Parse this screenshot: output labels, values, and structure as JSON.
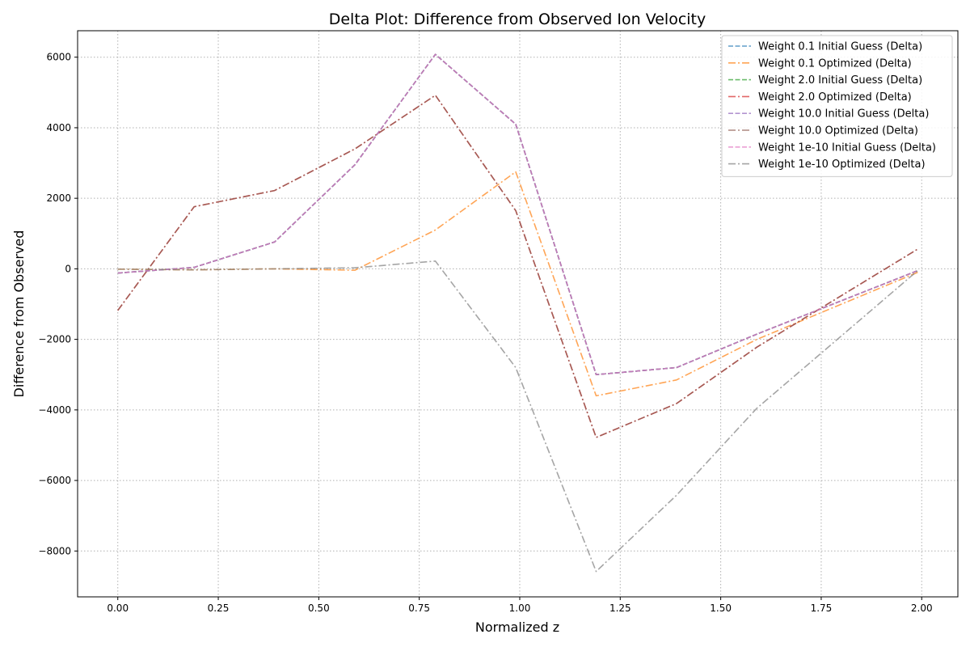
{
  "chart_data": {
    "type": "line",
    "title": "Delta Plot: Difference from Observed Ion Velocity",
    "xlabel": "Normalized z",
    "ylabel": "Difference from Observed",
    "xlim": [
      -0.1,
      2.09
    ],
    "ylim": [
      -9300,
      6750
    ],
    "xticks": [
      0.0,
      0.25,
      0.5,
      0.75,
      1.0,
      1.25,
      1.5,
      1.75,
      2.0
    ],
    "xtick_labels": [
      "0.00",
      "0.25",
      "0.50",
      "0.75",
      "1.00",
      "1.25",
      "1.50",
      "1.75",
      "2.00"
    ],
    "yticks": [
      -8000,
      -6000,
      -4000,
      -2000,
      0,
      2000,
      4000,
      6000
    ],
    "ytick_labels": [
      "−8000",
      "−6000",
      "−4000",
      "−2000",
      "0",
      "2000",
      "4000",
      "6000"
    ],
    "grid": true,
    "legend_position": "top-right",
    "x": [
      0.0,
      0.19,
      0.39,
      0.59,
      0.79,
      0.99,
      1.19,
      1.39,
      1.59,
      1.99
    ],
    "series": [
      {
        "name": "Weight 0.1 Initial Guess (Delta)",
        "color": "#1f77b4",
        "dash": "dashed",
        "values": [
          -120,
          40,
          760,
          2950,
          6080,
          4100,
          -3000,
          -2800,
          -1850,
          -50
        ]
      },
      {
        "name": "Weight 0.1 Optimized (Delta)",
        "color": "#ff7f0e",
        "dash": "dashdot",
        "values": [
          -10,
          -30,
          0,
          -40,
          1100,
          2750,
          -3600,
          -3150,
          -2000,
          -100
        ]
      },
      {
        "name": "Weight 2.0 Initial Guess (Delta)",
        "color": "#2ca02c",
        "dash": "dashed",
        "values": [
          -120,
          40,
          760,
          2950,
          6080,
          4100,
          -3000,
          -2800,
          -1850,
          -50
        ]
      },
      {
        "name": "Weight 2.0 Optimized (Delta)",
        "color": "#d62728",
        "dash": "dashdot",
        "values": [
          -1180,
          1760,
          2220,
          3400,
          4920,
          1650,
          -4780,
          -3820,
          -2220,
          560
        ]
      },
      {
        "name": "Weight 10.0 Initial Guess (Delta)",
        "color": "#9467bd",
        "dash": "dashed",
        "values": [
          -120,
          40,
          760,
          2950,
          6080,
          4100,
          -3000,
          -2800,
          -1850,
          -50
        ]
      },
      {
        "name": "Weight 10.0 Optimized (Delta)",
        "color": "#8c564b",
        "dash": "dashdot",
        "values": [
          -1180,
          1760,
          2220,
          3400,
          4920,
          1650,
          -4780,
          -3820,
          -2220,
          560
        ]
      },
      {
        "name": "Weight 1e-10 Initial Guess (Delta)",
        "color": "#e377c2",
        "dash": "dashed",
        "values": [
          -120,
          40,
          760,
          2950,
          6080,
          4100,
          -3000,
          -2800,
          -1850,
          -50
        ]
      },
      {
        "name": "Weight 1e-10 Optimized (Delta)",
        "color": "#7f7f7f",
        "dash": "dashdot",
        "values": [
          -10,
          -30,
          0,
          30,
          220,
          -2800,
          -8580,
          -6420,
          -3950,
          -50
        ]
      }
    ]
  }
}
